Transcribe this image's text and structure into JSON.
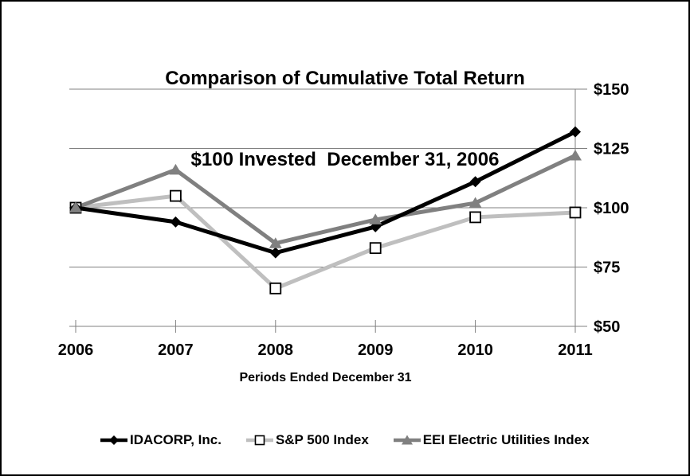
{
  "title": {
    "line1": "Comparison of Cumulative Total Return",
    "line2": "$100 Invested  December 31, 2006"
  },
  "chart_data": {
    "type": "line",
    "categories": [
      "2006",
      "2007",
      "2008",
      "2009",
      "2010",
      "2011"
    ],
    "series": [
      {
        "name": "IDACORP, Inc.",
        "values": [
          100,
          94,
          81,
          92,
          111,
          132
        ],
        "color": "#000000",
        "marker": "diamond"
      },
      {
        "name": "S&P 500 Index",
        "values": [
          100,
          105,
          66,
          83,
          96,
          98
        ],
        "color": "#BFBFBF",
        "marker": "square"
      },
      {
        "name": "EEI Electric Utilities Index",
        "values": [
          100,
          116,
          85,
          95,
          102,
          122
        ],
        "color": "#808080",
        "marker": "triangle"
      }
    ],
    "xlabel": "Periods Ended December 31",
    "ylabel": "",
    "ylim": [
      50,
      150
    ],
    "yticks": [
      150,
      125,
      100,
      75,
      50
    ],
    "ytick_labels": [
      "$150",
      "$125",
      "$100",
      "$75",
      "$50"
    ],
    "grid": true,
    "legend_position": "bottom",
    "axis_side": "right"
  },
  "colors": {
    "grid": "#808080",
    "axis": "#808080",
    "background": "#FFFFFF",
    "border": "#000000"
  }
}
